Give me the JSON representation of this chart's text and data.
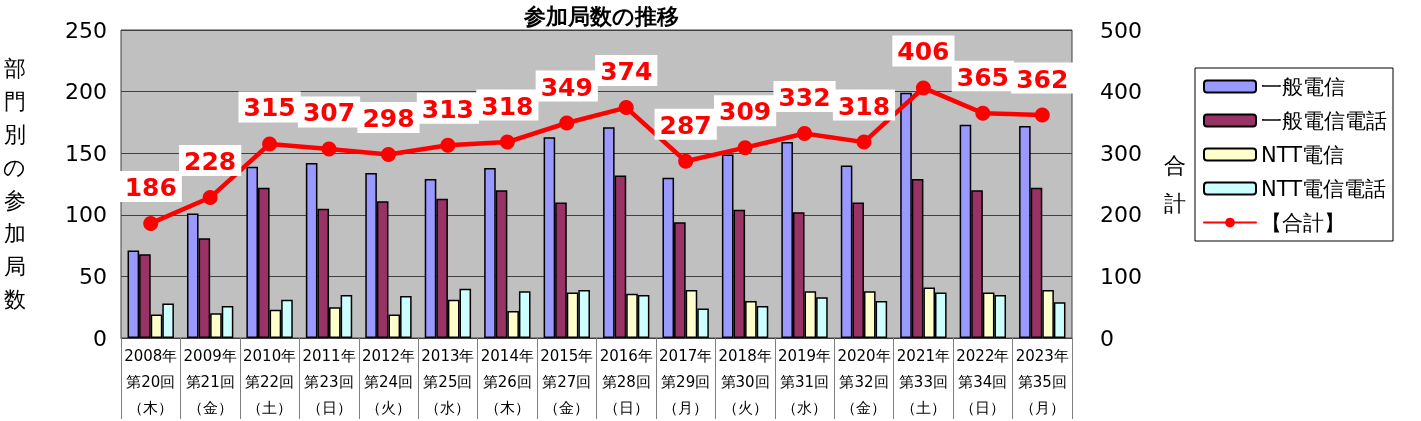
{
  "chart_data": {
    "type": "bar",
    "title": "参加局数の推移",
    "ylabel": "部門別の参加局数",
    "y2label": "合計",
    "categories": [
      "2008年第20回（木）",
      "2009年第21回（金）",
      "2010年第22回（土）",
      "2011年第23回（日）",
      "2012年第24回（火）",
      "2013年第25回（水）",
      "2014年第26回（木）",
      "2015年第27回（金）",
      "2016年第28回（日）",
      "2017年第29回（月）",
      "2018年第30回（火）",
      "2019年第31回（水）",
      "2020年第32回（金）",
      "2021年第33回（土）",
      "2022年第34回（日）",
      "2023年第35回（月）"
    ],
    "series": [
      {
        "name": "一般電信",
        "color": "#9999ff",
        "values": [
          71,
          101,
          139,
          142,
          134,
          129,
          138,
          163,
          171,
          130,
          149,
          159,
          140,
          199,
          173,
          172
        ]
      },
      {
        "name": "一般電信電話",
        "color": "#993366",
        "values": [
          68,
          81,
          122,
          105,
          111,
          113,
          120,
          110,
          132,
          94,
          104,
          102,
          110,
          129,
          120,
          122
        ]
      },
      {
        "name": "NTT電信",
        "color": "#ffffcc",
        "values": [
          19,
          20,
          23,
          25,
          19,
          31,
          22,
          37,
          36,
          39,
          30,
          38,
          38,
          41,
          37,
          39
        ]
      },
      {
        "name": "NTT電信電話",
        "color": "#ccffff",
        "values": [
          28,
          26,
          31,
          35,
          34,
          40,
          38,
          39,
          35,
          24,
          26,
          33,
          30,
          37,
          35,
          29
        ]
      },
      {
        "name": "【合計】",
        "type": "line",
        "axis": "y2",
        "color": "#ff0000",
        "values": [
          186,
          228,
          315,
          307,
          298,
          313,
          318,
          349,
          374,
          287,
          309,
          332,
          318,
          406,
          365,
          362
        ],
        "value_labels": [
          "186",
          "228",
          "315",
          "307",
          "298",
          "313",
          "318",
          "349",
          "374",
          "287",
          "309",
          "332",
          "318",
          "406",
          "365",
          "362"
        ]
      }
    ],
    "ylim": [
      0,
      250
    ],
    "yticks": [
      0,
      50,
      100,
      150,
      200,
      250
    ],
    "y2lim": [
      0,
      500
    ],
    "y2ticks": [
      0,
      100,
      200,
      300,
      400,
      500
    ],
    "grid": "y",
    "legend": "right",
    "marker": "circle"
  }
}
